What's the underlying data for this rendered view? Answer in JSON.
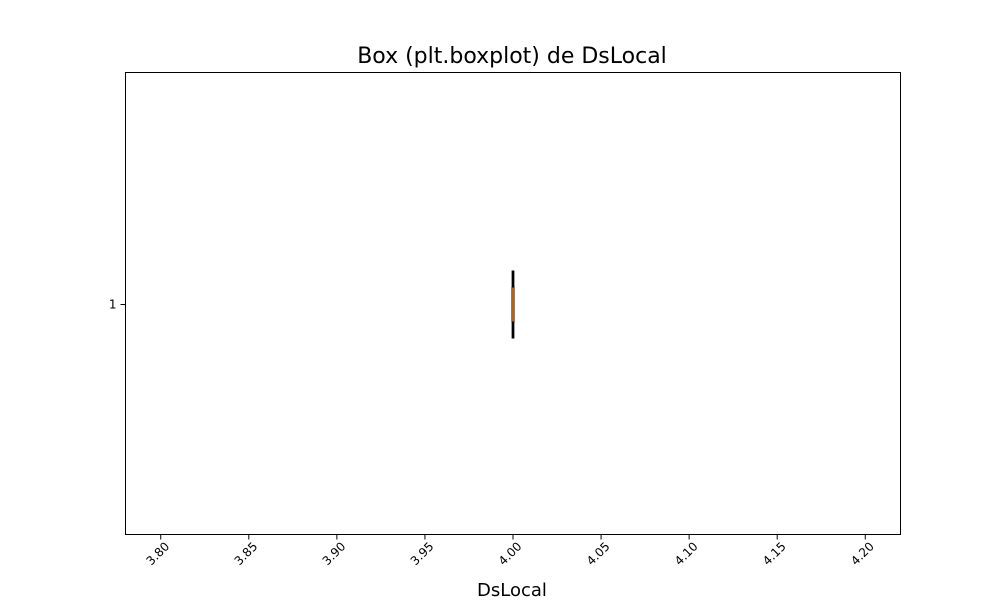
{
  "chart_data": {
    "type": "boxplot",
    "title": "Box (plt.boxplot) de DsLocal",
    "xlabel": "DsLocal",
    "ylabel": "",
    "orientation": "horizontal",
    "xlim": [
      3.78,
      4.22
    ],
    "x_ticks": [
      3.8,
      3.85,
      3.9,
      3.95,
      4.0,
      4.05,
      4.1,
      4.15,
      4.2
    ],
    "x_tick_labels": [
      "3.80",
      "3.85",
      "3.90",
      "3.95",
      "4.00",
      "4.05",
      "4.10",
      "4.15",
      "4.20"
    ],
    "y_tick_labels": [
      "1"
    ],
    "boxes": [
      {
        "position": 1,
        "whisker_low": 4.0,
        "q1": 4.0,
        "median": 4.0,
        "q3": 4.0,
        "whisker_high": 4.0
      }
    ],
    "grid": false,
    "colors": {
      "box": "#000000",
      "median": "#ff7f0e",
      "axes": "#000000"
    }
  }
}
